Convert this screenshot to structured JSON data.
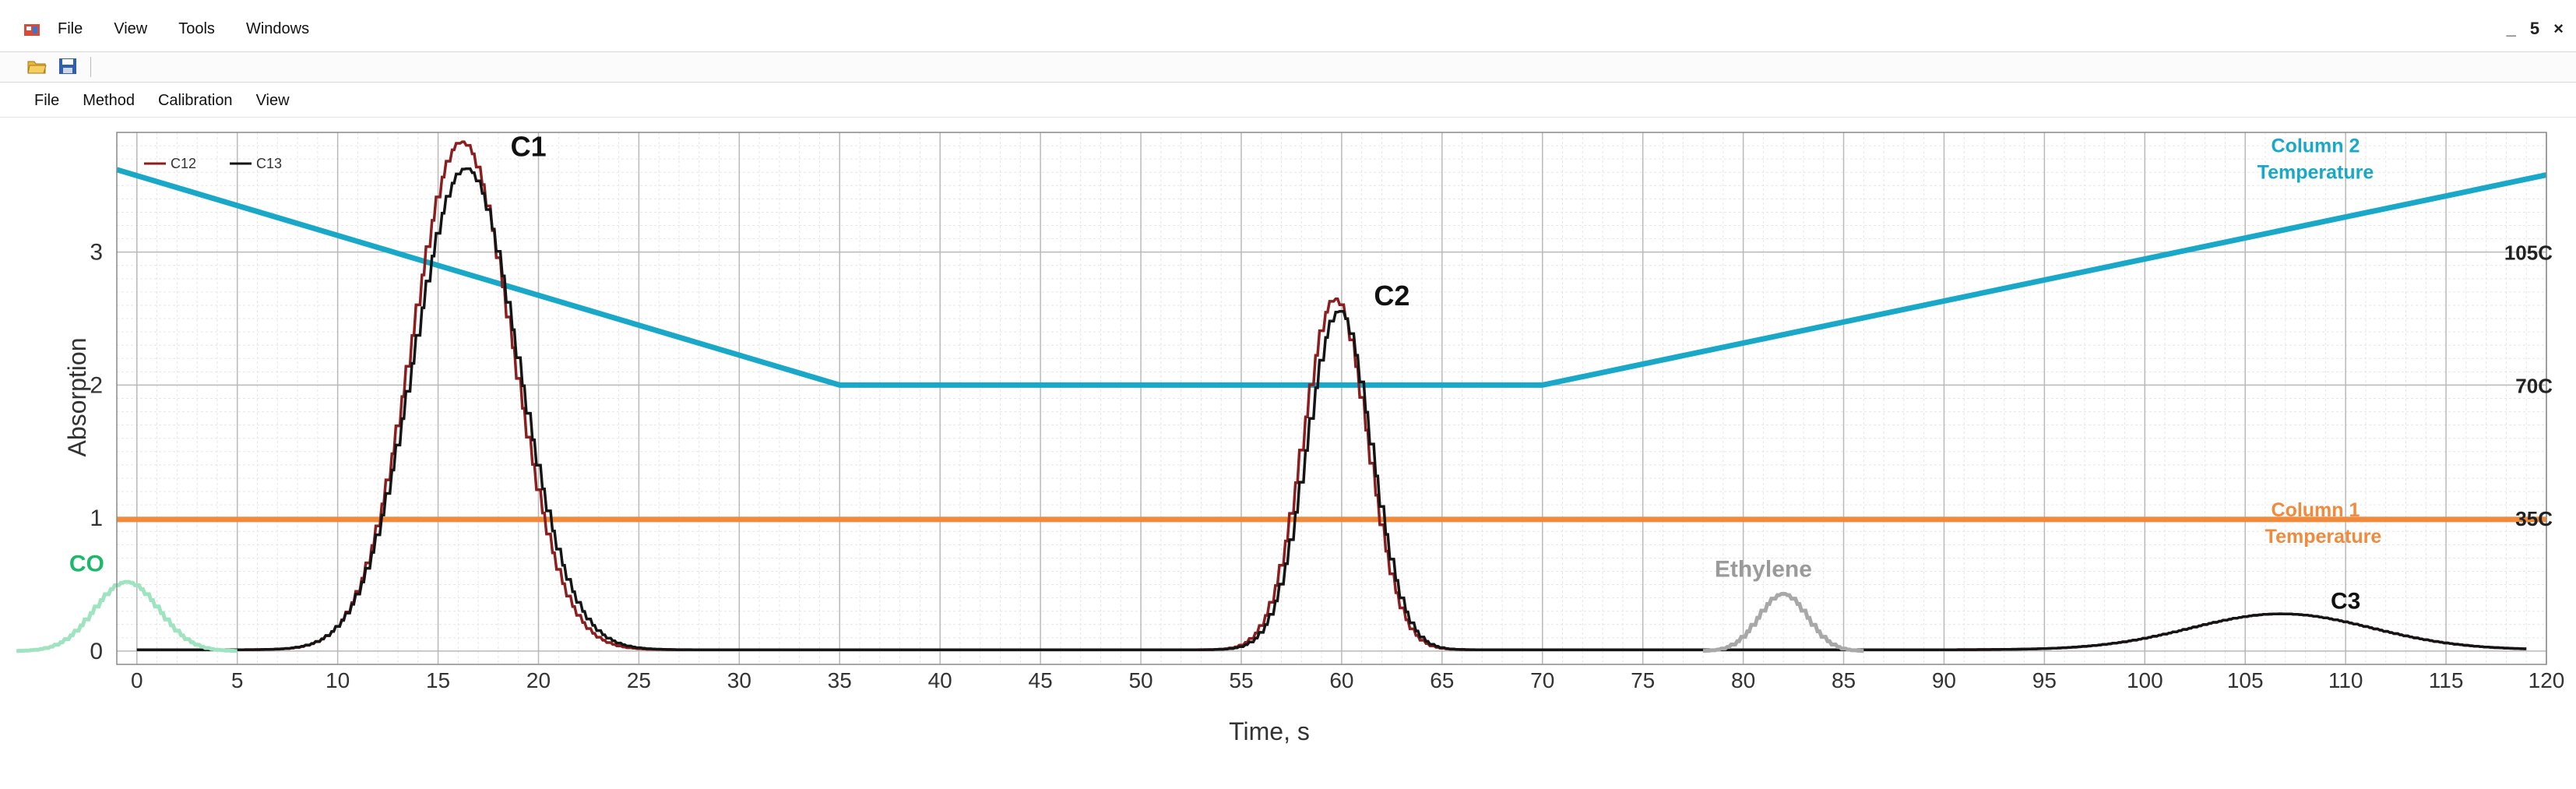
{
  "window": {
    "menu": [
      "File",
      "View",
      "Tools",
      "Windows"
    ],
    "controls": [
      "_",
      "5",
      "×"
    ]
  },
  "toolbar": {
    "buttons": [
      "open-folder-icon",
      "save-icon"
    ]
  },
  "menubar": [
    "File",
    "Method",
    "Calibration",
    "View"
  ],
  "chart_data": {
    "type": "line",
    "xlabel": "Time, s",
    "ylabel": "Absorption",
    "xlim": [
      -1,
      120
    ],
    "ylim": [
      -0.1,
      3.9
    ],
    "x_ticks": [
      0,
      5,
      10,
      15,
      20,
      25,
      30,
      35,
      40,
      45,
      50,
      55,
      60,
      65,
      70,
      75,
      80,
      85,
      90,
      95,
      100,
      105,
      110,
      115,
      120
    ],
    "x_tick_labels": [
      "0",
      "5",
      "10",
      "15",
      "20",
      "25",
      "30",
      "35",
      "40",
      "45",
      "50",
      "55",
      "60",
      "65",
      "70",
      "75",
      "80",
      "85",
      "90",
      "95",
      "100",
      "105",
      "110",
      "115",
      "120"
    ],
    "y_ticks": [
      0,
      1,
      2,
      3
    ],
    "y_tick_labels": [
      "0",
      "1",
      "2",
      "3"
    ],
    "grid": true,
    "legend": {
      "position": "top-left",
      "entries": [
        "C12",
        "C13"
      ]
    },
    "right_labels": [
      {
        "text": "105C",
        "y": 3.0
      },
      {
        "text": "70C",
        "y": 2.0
      },
      {
        "text": "35C",
        "y": 1.0
      }
    ],
    "series": [
      {
        "name": "Column 2 Temperature",
        "color": "#19a8c8",
        "label_lines": [
          "Column 2",
          "Temperature"
        ],
        "points": [
          [
            -1,
            3.62
          ],
          [
            35,
            2.0
          ],
          [
            70,
            2.0
          ],
          [
            120,
            3.58
          ]
        ]
      },
      {
        "name": "Column 1 Temperature",
        "color": "#f08a3c",
        "label_lines": [
          "Column 1",
          "Temperature"
        ],
        "points": [
          [
            -1,
            0.99
          ],
          [
            120,
            0.99
          ]
        ]
      },
      {
        "name": "C12",
        "color": "#8b1e1e",
        "baseline": 0.01,
        "peaks": [
          [
            16.2,
            3.82,
            2.5
          ],
          [
            59.7,
            2.64,
            1.6
          ],
          [
            106.8,
            0.27,
            4.5
          ]
        ]
      },
      {
        "name": "C13",
        "color": "#151515",
        "baseline": 0.01,
        "peaks": [
          [
            16.4,
            3.62,
            2.6
          ],
          [
            59.9,
            2.55,
            1.6
          ],
          [
            106.8,
            0.27,
            4.5
          ]
        ]
      },
      {
        "name": "CO",
        "color": "#9fe3c0",
        "baseline": 0.0,
        "x_range": [
          -6,
          5
        ],
        "peaks": [
          [
            -0.5,
            0.52,
            1.6
          ]
        ]
      },
      {
        "name": "Ethylene",
        "color": "#a8a8a8",
        "baseline": 0.0,
        "x_range": [
          78,
          86
        ],
        "peaks": [
          [
            82,
            0.43,
            1.2
          ]
        ]
      }
    ],
    "annotations": [
      {
        "text": "C1",
        "x": 19.5,
        "y": 3.72,
        "color": "#111111"
      },
      {
        "text": "C2",
        "x": 62.5,
        "y": 2.6,
        "color": "#111111"
      },
      {
        "text": "C3",
        "x": 110,
        "y": 0.32,
        "color": "#111111"
      },
      {
        "text": "CO",
        "x": -2.5,
        "y": 0.6,
        "color": "#1fb86a"
      },
      {
        "text": "Ethylene",
        "x": 81,
        "y": 0.56,
        "color": "#9a9a9a"
      }
    ]
  }
}
